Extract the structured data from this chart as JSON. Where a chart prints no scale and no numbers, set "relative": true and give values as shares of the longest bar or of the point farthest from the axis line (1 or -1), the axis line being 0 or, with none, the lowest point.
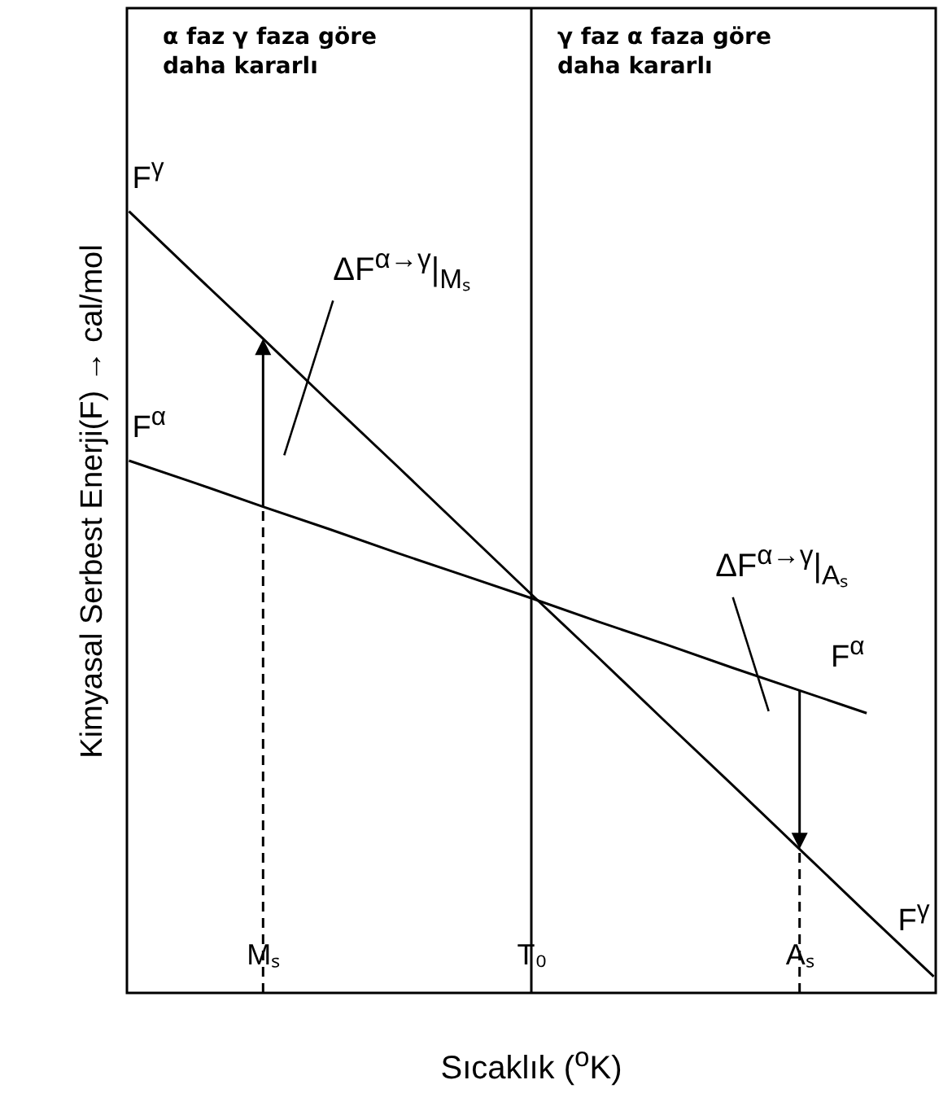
{
  "chart_data": {
    "type": "line",
    "relative": true,
    "xlabel": "Sıcaklık ($^{o}$K)",
    "ylabel": "Kimyasal Serbest Enerji(F) → cal/mol",
    "categories": [
      null,
      null,
      "Mₛ",
      null,
      null,
      null,
      "T₀",
      null,
      null,
      null,
      "Aₛ",
      null,
      null
    ],
    "series": [
      {
        "name": "F$^{γ}$",
        "color": "#000000",
        "values": [
          1.0,
          0.918,
          0.837,
          0.755,
          0.674,
          0.592,
          0.51,
          0.429,
          0.347,
          0.266,
          0.184,
          0.102,
          0.021
        ]
      },
      {
        "name": "F$^{α}$",
        "color": "#000000",
        "values": [
          0.681,
          0.652,
          0.622,
          0.593,
          0.563,
          0.534,
          0.505,
          0.475,
          0.446,
          0.416,
          0.387,
          0.358,
          null
        ]
      }
    ],
    "ref_lines": [
      {
        "axis": "x",
        "value": "Mₛ",
        "line_style": "dashed"
      },
      {
        "axis": "x",
        "value": "T₀"
      },
      {
        "axis": "x",
        "value": "Aₛ",
        "line_style": "dashed"
      }
    ],
    "annotations": [
      "α faz γ faza göre\ndaha kararlı",
      "γ faz α faza göre\ndaha kararlı",
      "ΔF$^{α→γ}$|$_{Mₛ}$",
      "ΔF$^{α→γ}$|$_{Aₛ}$"
    ],
    "marker": "none"
  }
}
